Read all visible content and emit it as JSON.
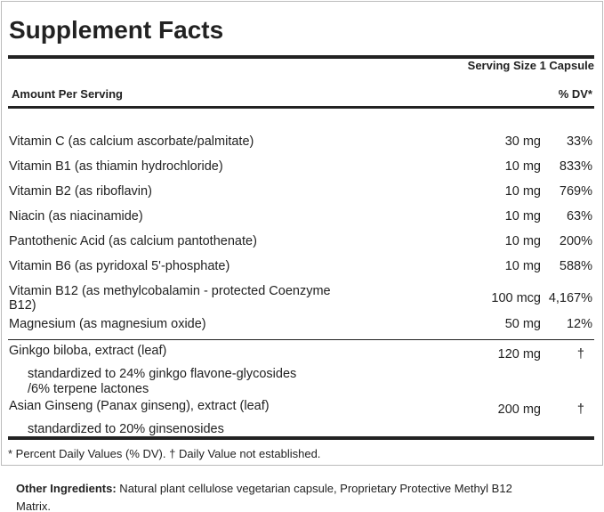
{
  "title": "Supplement Facts",
  "serving_size": "Serving Size 1 Capsule",
  "amount_per_serving": "Amount Per Serving",
  "dv_header": "% DV*",
  "rows": [
    {
      "name": "Vitamin C (as calcium ascorbate/palmitate)",
      "amount": "30 mg",
      "dv": "33%"
    },
    {
      "name": "Vitamin B1 (as thiamin hydrochloride)",
      "amount": "10 mg",
      "dv": "833%"
    },
    {
      "name": "Vitamin B2 (as riboflavin)",
      "amount": "10 mg",
      "dv": "769%"
    },
    {
      "name": "Niacin (as niacinamide)",
      "amount": "10 mg",
      "dv": "63%"
    },
    {
      "name": "Pantothenic Acid (as calcium pantothenate)",
      "amount": "10 mg",
      "dv": "200%"
    },
    {
      "name": "Vitamin B6 (as pyridoxal 5'-phosphate)",
      "amount": "10 mg",
      "dv": "588%"
    },
    {
      "name": "Vitamin B12 (as methylcobalamin - protected Coenzyme",
      "name2": "B12)",
      "amount": "100 mcg",
      "dv": "4,167%"
    },
    {
      "name": "Magnesium (as magnesium oxide)",
      "amount": "50 mg",
      "dv": "12%"
    }
  ],
  "herbs": [
    {
      "name": "Ginkgo biloba, extract (leaf)",
      "amount": "120 mg",
      "dv": "†",
      "sub1": "standardized to 24% ginkgo flavone-glycosides",
      "sub2": "/6% terpene lactones"
    },
    {
      "name": "Asian Ginseng (Panax ginseng), extract (leaf)",
      "amount": "200 mg",
      "dv": "†",
      "sub1": "standardized to 20% ginsenosides"
    }
  ],
  "footnote": "* Percent Daily Values (% DV). † Daily Value not established.",
  "other_label": "Other Ingredients:",
  "other_text": " Natural plant cellulose vegetarian capsule, Proprietary Protective Methyl B12",
  "other_text2": "Matrix."
}
